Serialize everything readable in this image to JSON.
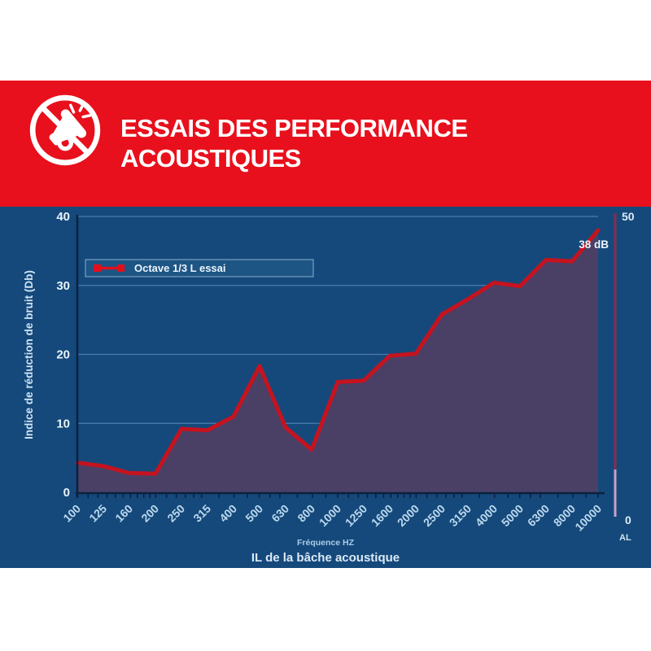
{
  "header": {
    "title_line1": "ESSAIS DES PERFORMANCE",
    "title_line2": "ACOUSTIQUES",
    "icon": "muted-megaphone-icon",
    "bg": "#e8101c"
  },
  "chart_data": {
    "type": "line",
    "title": "",
    "xlabel": "Fréquence HZ",
    "xlabel2": "IL de la bâche acoustique",
    "ylabel": "Indice de réduction de bruit (Db)",
    "categories": [
      100,
      125,
      160,
      200,
      250,
      315,
      400,
      500,
      630,
      800,
      1000,
      1250,
      1600,
      2000,
      2500,
      3150,
      4000,
      5000,
      6300,
      8000,
      10000
    ],
    "series": [
      {
        "name": "Octave 1/3 L essai",
        "values": [
          4.3,
          3.8,
          2.8,
          2.7,
          9.2,
          9.0,
          11.0,
          18.3,
          9.4,
          6.2,
          16.0,
          16.2,
          19.8,
          20.1,
          25.8,
          28.0,
          30.4,
          29.9,
          33.7,
          33.5,
          38.0
        ]
      }
    ],
    "ylim": [
      0,
      40
    ],
    "yticks": [
      0,
      10,
      20,
      30,
      40
    ],
    "grid": true,
    "legend_position": "upper-left",
    "annotation": "38 dB",
    "right_axis": {
      "top_label": "50",
      "bottom_label": "0",
      "axis_name": "AL"
    },
    "colors": {
      "panel_bg": "#15497b",
      "line": "#c5131f",
      "area_fill": "#4a4066",
      "grid": "#4c7dad",
      "axis": "#0d2140",
      "tick_text": "#bcd9ee",
      "label_text": "#dbeaf6",
      "legend_bg": "#1d5585",
      "legend_border": "#86aecd",
      "legend_marker": "#e3101c",
      "right_bar_top": "#8c2a4e",
      "right_bar_bottom": "#c9a2c4"
    }
  }
}
